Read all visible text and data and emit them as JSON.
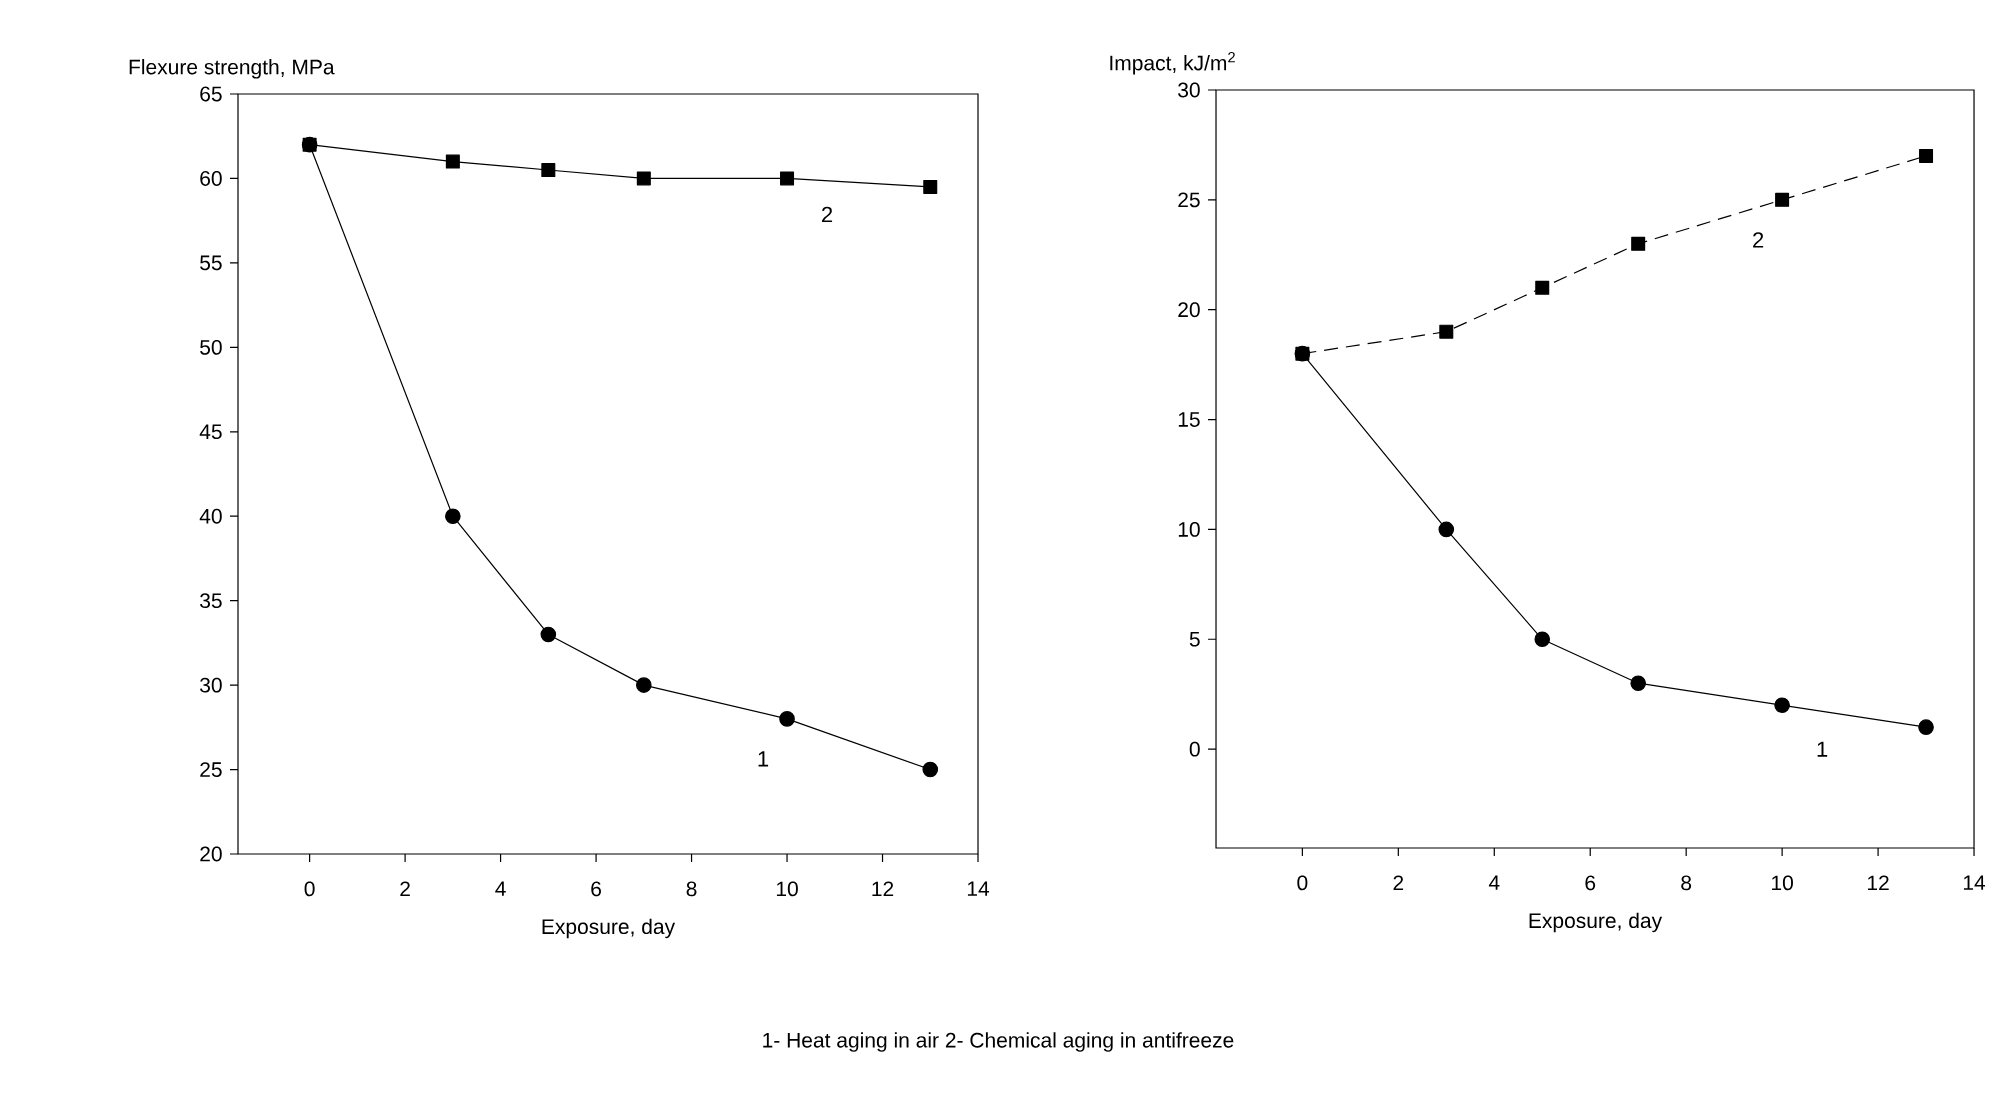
{
  "chart_data": [
    {
      "type": "line",
      "ylabel": "Flexure strength, MPa",
      "xlabel": "Exposure, day",
      "xlim": [
        -1.5,
        14
      ],
      "ylim": [
        20,
        65
      ],
      "xticks": [
        0,
        2,
        4,
        6,
        8,
        10,
        12,
        14
      ],
      "yticks": [
        20,
        25,
        30,
        35,
        40,
        45,
        50,
        55,
        60,
        65
      ],
      "series": [
        {
          "name": "1",
          "color": "#000000",
          "marker": "circle",
          "line_style": "solid",
          "x": [
            0,
            3,
            5,
            7,
            10,
            13
          ],
          "values": [
            62,
            40,
            33,
            30,
            28,
            25
          ]
        },
        {
          "name": "2",
          "color": "#000000",
          "marker": "square",
          "line_style": "solid",
          "x": [
            0,
            3,
            5,
            7,
            10,
            13
          ],
          "values": [
            62,
            61,
            60.5,
            60,
            60,
            59.5
          ]
        }
      ]
    },
    {
      "type": "line",
      "ylabel": "Impact, kJ/m$^{2}$",
      "xlabel": "Exposure, day",
      "xlim": [
        -1.8,
        14
      ],
      "ylim": [
        -4.5,
        30
      ],
      "xticks": [
        0,
        2,
        4,
        6,
        8,
        10,
        12,
        14
      ],
      "yticks": [
        0,
        5,
        10,
        15,
        20,
        25,
        30
      ],
      "annotations": [
        "1- Heat aging in air  2- Chemical aging in antifreeze"
      ],
      "series": [
        {
          "name": "1",
          "color": "#000000",
          "marker": "circle",
          "line_style": "solid",
          "x": [
            0,
            3,
            5,
            7,
            10,
            13
          ],
          "values": [
            18,
            10,
            5,
            3,
            2,
            1
          ]
        },
        {
          "name": "2",
          "color": "#000000",
          "marker": "square",
          "line_style": "dashed",
          "x": [
            0,
            3,
            5,
            7,
            10,
            13
          ],
          "values": [
            18,
            19,
            21,
            23,
            25,
            27
          ]
        }
      ]
    }
  ]
}
